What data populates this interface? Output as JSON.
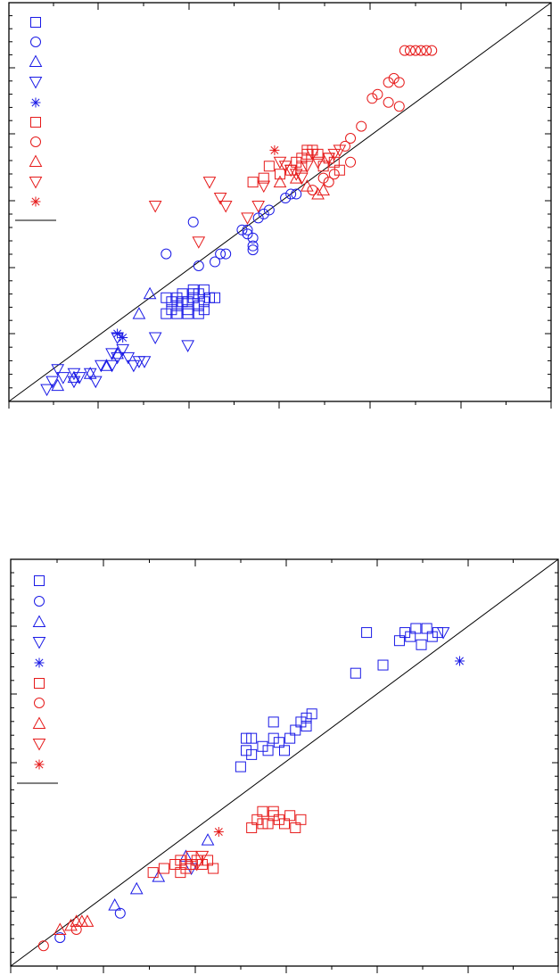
{
  "colors": {
    "blue": "#1a1ae6",
    "red": "#e61a1a",
    "axis": "#000000"
  },
  "chart_data": [
    {
      "type": "scatter",
      "title": "",
      "xlabel": "",
      "ylabel": "",
      "xlim": [
        0,
        1
      ],
      "ylim": [
        0,
        1
      ],
      "diagonal": true,
      "grid": false,
      "legend": {
        "placement": "top-left",
        "entries": [
          {
            "marker": "square",
            "color": "blue"
          },
          {
            "marker": "circle",
            "color": "blue"
          },
          {
            "marker": "triangle-up",
            "color": "blue"
          },
          {
            "marker": "triangle-down",
            "color": "blue"
          },
          {
            "marker": "asterisk",
            "color": "blue"
          },
          {
            "marker": "square",
            "color": "red"
          },
          {
            "marker": "circle",
            "color": "red"
          },
          {
            "marker": "triangle-up",
            "color": "red"
          },
          {
            "marker": "triangle-down",
            "color": "red"
          },
          {
            "marker": "asterisk",
            "color": "red"
          },
          {
            "marker": "line",
            "color": "axis"
          }
        ]
      },
      "series": [
        {
          "marker": "square",
          "color": "blue",
          "points": [
            [
              0.29,
              0.26
            ],
            [
              0.31,
              0.24
            ],
            [
              0.32,
              0.25
            ],
            [
              0.33,
              0.25
            ],
            [
              0.34,
              0.26
            ],
            [
              0.35,
              0.24
            ],
            [
              0.31,
              0.26
            ],
            [
              0.32,
              0.27
            ],
            [
              0.34,
              0.27
            ],
            [
              0.36,
              0.25
            ],
            [
              0.37,
              0.26
            ],
            [
              0.29,
              0.22
            ],
            [
              0.3,
              0.23
            ],
            [
              0.33,
              0.23
            ],
            [
              0.35,
              0.22
            ],
            [
              0.36,
              0.23
            ],
            [
              0.38,
              0.26
            ],
            [
              0.31,
              0.22
            ],
            [
              0.34,
              0.28
            ],
            [
              0.35,
              0.27
            ],
            [
              0.36,
              0.28
            ],
            [
              0.3,
              0.25
            ],
            [
              0.33,
              0.22
            ]
          ]
        },
        {
          "marker": "circle",
          "color": "blue",
          "points": [
            [
              0.29,
              0.37
            ],
            [
              0.34,
              0.45
            ],
            [
              0.35,
              0.34
            ],
            [
              0.38,
              0.35
            ],
            [
              0.39,
              0.37
            ],
            [
              0.4,
              0.37
            ],
            [
              0.43,
              0.43
            ],
            [
              0.44,
              0.42
            ],
            [
              0.45,
              0.41
            ],
            [
              0.45,
              0.39
            ],
            [
              0.45,
              0.38
            ],
            [
              0.47,
              0.47
            ],
            [
              0.48,
              0.48
            ],
            [
              0.51,
              0.51
            ],
            [
              0.52,
              0.52
            ],
            [
              0.53,
              0.52
            ],
            [
              0.44,
              0.43
            ],
            [
              0.46,
              0.46
            ]
          ]
        },
        {
          "marker": "triangle-up",
          "color": "blue",
          "points": [
            [
              0.09,
              0.04
            ],
            [
              0.12,
              0.06
            ],
            [
              0.15,
              0.07
            ],
            [
              0.18,
              0.09
            ],
            [
              0.2,
              0.12
            ],
            [
              0.24,
              0.22
            ],
            [
              0.26,
              0.27
            ]
          ]
        },
        {
          "marker": "triangle-down",
          "color": "blue",
          "points": [
            [
              0.07,
              0.03
            ],
            [
              0.08,
              0.05
            ],
            [
              0.09,
              0.08
            ],
            [
              0.1,
              0.06
            ],
            [
              0.12,
              0.07
            ],
            [
              0.13,
              0.06
            ],
            [
              0.15,
              0.07
            ],
            [
              0.17,
              0.09
            ],
            [
              0.19,
              0.12
            ],
            [
              0.19,
              0.09
            ],
            [
              0.2,
              0.16
            ],
            [
              0.21,
              0.13
            ],
            [
              0.22,
              0.11
            ],
            [
              0.23,
              0.09
            ],
            [
              0.24,
              0.1
            ],
            [
              0.25,
              0.1
            ],
            [
              0.27,
              0.16
            ],
            [
              0.12,
              0.05
            ],
            [
              0.16,
              0.05
            ],
            [
              0.2,
              0.11
            ],
            [
              0.33,
              0.14
            ]
          ]
        },
        {
          "marker": "asterisk",
          "color": "blue",
          "points": [
            [
              0.2,
              0.17
            ],
            [
              0.21,
              0.16
            ]
          ]
        },
        {
          "marker": "square",
          "color": "red",
          "points": [
            [
              0.45,
              0.55
            ],
            [
              0.47,
              0.56
            ],
            [
              0.48,
              0.59
            ],
            [
              0.5,
              0.57
            ],
            [
              0.52,
              0.58
            ],
            [
              0.53,
              0.6
            ],
            [
              0.54,
              0.61
            ],
            [
              0.55,
              0.62
            ],
            [
              0.56,
              0.63
            ],
            [
              0.57,
              0.62
            ],
            [
              0.58,
              0.59
            ],
            [
              0.59,
              0.61
            ],
            [
              0.6,
              0.6
            ],
            [
              0.61,
              0.58
            ],
            [
              0.55,
              0.63
            ],
            [
              0.54,
              0.59
            ]
          ]
        },
        {
          "marker": "circle",
          "color": "red",
          "points": [
            [
              0.56,
              0.53
            ],
            [
              0.58,
              0.56
            ],
            [
              0.59,
              0.55
            ],
            [
              0.6,
              0.57
            ],
            [
              0.62,
              0.64
            ],
            [
              0.63,
              0.66
            ],
            [
              0.67,
              0.76
            ],
            [
              0.68,
              0.77
            ],
            [
              0.7,
              0.8
            ],
            [
              0.71,
              0.81
            ],
            [
              0.72,
              0.8
            ],
            [
              0.73,
              0.88
            ],
            [
              0.74,
              0.88
            ],
            [
              0.75,
              0.88
            ],
            [
              0.76,
              0.88
            ],
            [
              0.77,
              0.88
            ],
            [
              0.78,
              0.88
            ],
            [
              0.7,
              0.75
            ],
            [
              0.72,
              0.74
            ],
            [
              0.65,
              0.69
            ],
            [
              0.63,
              0.6
            ]
          ]
        },
        {
          "marker": "triangle-up",
          "color": "red",
          "points": [
            [
              0.5,
              0.55
            ],
            [
              0.53,
              0.56
            ],
            [
              0.55,
              0.54
            ],
            [
              0.57,
              0.52
            ],
            [
              0.58,
              0.53
            ]
          ]
        },
        {
          "marker": "triangle-down",
          "color": "red",
          "points": [
            [
              0.27,
              0.49
            ],
            [
              0.35,
              0.4
            ],
            [
              0.37,
              0.55
            ],
            [
              0.39,
              0.51
            ],
            [
              0.4,
              0.49
            ],
            [
              0.44,
              0.46
            ],
            [
              0.46,
              0.49
            ],
            [
              0.47,
              0.54
            ],
            [
              0.5,
              0.6
            ],
            [
              0.51,
              0.59
            ],
            [
              0.52,
              0.58
            ],
            [
              0.53,
              0.57
            ],
            [
              0.54,
              0.56
            ],
            [
              0.55,
              0.59
            ],
            [
              0.56,
              0.62
            ],
            [
              0.57,
              0.6
            ],
            [
              0.59,
              0.61
            ],
            [
              0.6,
              0.62
            ],
            [
              0.61,
              0.63
            ]
          ]
        },
        {
          "marker": "asterisk",
          "color": "red",
          "points": [
            [
              0.49,
              0.63
            ]
          ]
        }
      ]
    },
    {
      "type": "scatter",
      "title": "",
      "xlabel": "",
      "ylabel": "",
      "xlim": [
        0,
        1
      ],
      "ylim": [
        0,
        1
      ],
      "diagonal": true,
      "grid": false,
      "legend": {
        "placement": "top-left",
        "entries": [
          {
            "marker": "square",
            "color": "blue"
          },
          {
            "marker": "circle",
            "color": "blue"
          },
          {
            "marker": "triangle-up",
            "color": "blue"
          },
          {
            "marker": "triangle-down",
            "color": "blue"
          },
          {
            "marker": "asterisk",
            "color": "blue"
          },
          {
            "marker": "square",
            "color": "red"
          },
          {
            "marker": "circle",
            "color": "red"
          },
          {
            "marker": "triangle-up",
            "color": "red"
          },
          {
            "marker": "triangle-down",
            "color": "red"
          },
          {
            "marker": "asterisk",
            "color": "red"
          },
          {
            "marker": "line",
            "color": "axis"
          }
        ]
      },
      "series": [
        {
          "marker": "square",
          "color": "blue",
          "points": [
            [
              0.42,
              0.49
            ],
            [
              0.43,
              0.53
            ],
            [
              0.44,
              0.56
            ],
            [
              0.46,
              0.54
            ],
            [
              0.47,
              0.53
            ],
            [
              0.48,
              0.56
            ],
            [
              0.49,
              0.55
            ],
            [
              0.5,
              0.53
            ],
            [
              0.51,
              0.56
            ],
            [
              0.52,
              0.58
            ],
            [
              0.53,
              0.6
            ],
            [
              0.54,
              0.59
            ],
            [
              0.55,
              0.62
            ],
            [
              0.44,
              0.52
            ],
            [
              0.48,
              0.6
            ],
            [
              0.54,
              0.61
            ],
            [
              0.43,
              0.56
            ],
            [
              0.63,
              0.72
            ],
            [
              0.65,
              0.82
            ],
            [
              0.68,
              0.74
            ],
            [
              0.71,
              0.8
            ],
            [
              0.72,
              0.82
            ],
            [
              0.73,
              0.81
            ],
            [
              0.74,
              0.83
            ],
            [
              0.75,
              0.79
            ],
            [
              0.76,
              0.83
            ],
            [
              0.77,
              0.81
            ],
            [
              0.78,
              0.82
            ]
          ]
        },
        {
          "marker": "circle",
          "color": "blue",
          "points": [
            [
              0.09,
              0.07
            ],
            [
              0.2,
              0.13
            ]
          ]
        },
        {
          "marker": "triangle-up",
          "color": "blue",
          "points": [
            [
              0.19,
              0.15
            ],
            [
              0.23,
              0.19
            ],
            [
              0.27,
              0.22
            ],
            [
              0.32,
              0.27
            ],
            [
              0.36,
              0.31
            ]
          ]
        },
        {
          "marker": "triangle-down",
          "color": "blue",
          "points": [
            [
              0.33,
              0.24
            ],
            [
              0.79,
              0.82
            ]
          ]
        },
        {
          "marker": "asterisk",
          "color": "blue",
          "points": [
            [
              0.82,
              0.75
            ]
          ]
        },
        {
          "marker": "square",
          "color": "red",
          "points": [
            [
              0.26,
              0.23
            ],
            [
              0.28,
              0.24
            ],
            [
              0.3,
              0.25
            ],
            [
              0.31,
              0.26
            ],
            [
              0.32,
              0.24
            ],
            [
              0.33,
              0.25
            ],
            [
              0.34,
              0.26
            ],
            [
              0.35,
              0.25
            ],
            [
              0.36,
              0.26
            ],
            [
              0.31,
              0.23
            ],
            [
              0.32,
              0.25
            ],
            [
              0.33,
              0.27
            ],
            [
              0.37,
              0.24
            ],
            [
              0.44,
              0.34
            ],
            [
              0.45,
              0.36
            ],
            [
              0.46,
              0.35
            ],
            [
              0.47,
              0.35
            ],
            [
              0.48,
              0.38
            ],
            [
              0.49,
              0.36
            ],
            [
              0.5,
              0.35
            ],
            [
              0.51,
              0.37
            ],
            [
              0.52,
              0.34
            ],
            [
              0.53,
              0.36
            ],
            [
              0.46,
              0.38
            ],
            [
              0.48,
              0.37
            ]
          ]
        },
        {
          "marker": "circle",
          "color": "red",
          "points": [
            [
              0.06,
              0.05
            ],
            [
              0.12,
              0.09
            ]
          ]
        },
        {
          "marker": "triangle-up",
          "color": "red",
          "points": [
            [
              0.09,
              0.09
            ],
            [
              0.11,
              0.1
            ],
            [
              0.12,
              0.11
            ],
            [
              0.13,
              0.11
            ],
            [
              0.14,
              0.11
            ]
          ]
        },
        {
          "marker": "triangle-down",
          "color": "red",
          "points": [
            [
              0.34,
              0.25
            ],
            [
              0.35,
              0.27
            ]
          ]
        },
        {
          "marker": "asterisk",
          "color": "red",
          "points": [
            [
              0.38,
              0.33
            ]
          ]
        }
      ]
    }
  ]
}
